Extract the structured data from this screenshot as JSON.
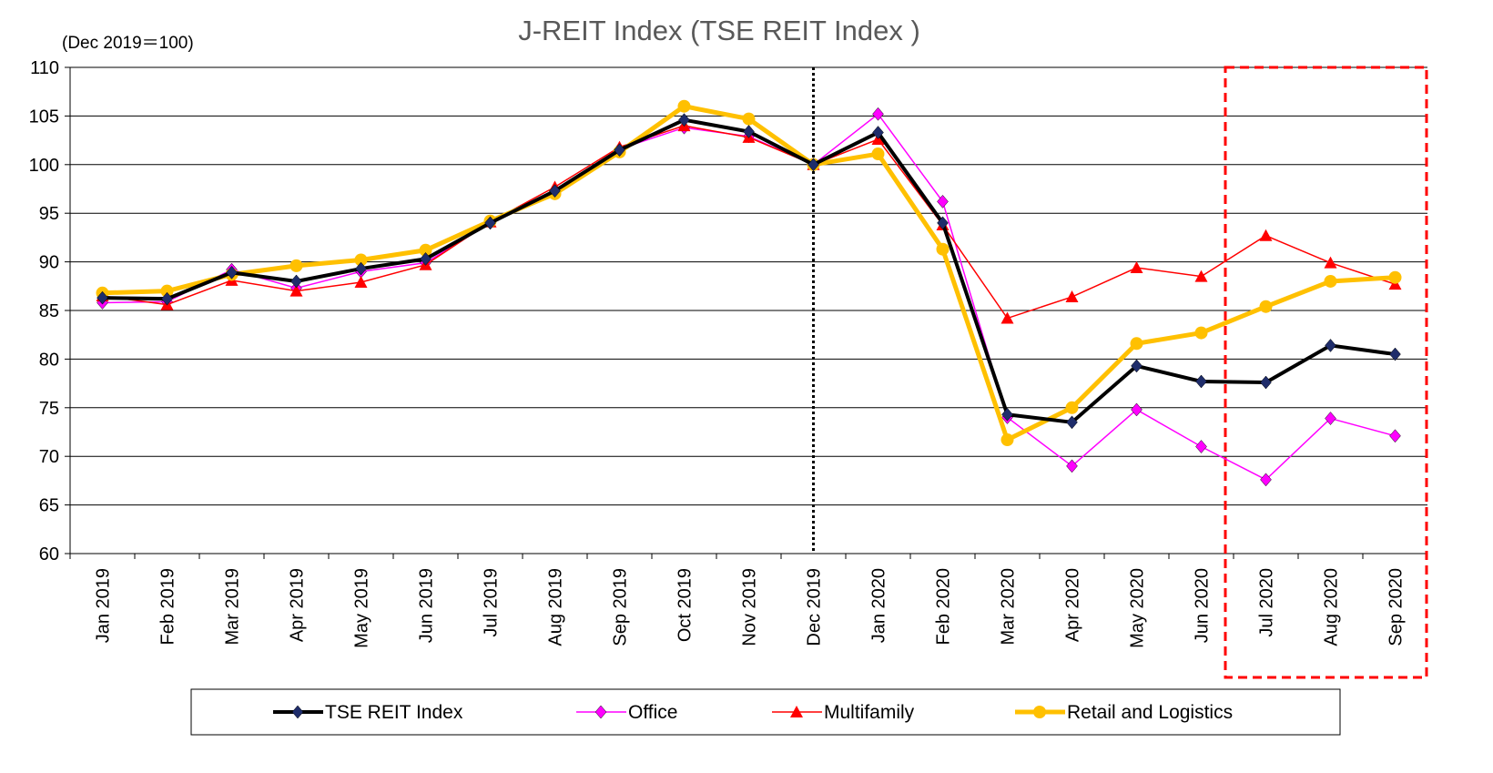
{
  "chart_data": {
    "type": "line",
    "title": "J-REIT Index (TSE REIT Index )",
    "y_label": "(Dec 2019＝100)",
    "categories": [
      "Jan 2019",
      "Feb 2019",
      "Mar 2019",
      "Apr 2019",
      "May 2019",
      "Jun 2019",
      "Jul 2019",
      "Aug 2019",
      "Sep 2019",
      "Oct 2019",
      "Nov 2019",
      "Dec 2019",
      "Jan 2020",
      "Feb 2020",
      "Mar 2020",
      "Apr 2020",
      "May 2020",
      "Jun 2020",
      "Jul 2020",
      "Aug 2020",
      "Sep 2020"
    ],
    "series": [
      {
        "name": "TSE REIT Index",
        "color": "#000000",
        "marker": "diamond",
        "marker_color": "#1f2d6b",
        "values": [
          86.3,
          86.2,
          88.9,
          88.0,
          89.3,
          90.3,
          94.0,
          97.3,
          101.5,
          104.6,
          103.4,
          100,
          103.3,
          94.0,
          74.3,
          73.5,
          79.3,
          77.7,
          77.6,
          81.4,
          80.5
        ]
      },
      {
        "name": "Office",
        "color": "#ff00ff",
        "marker": "diamond",
        "marker_color": "#ff00ff",
        "values": [
          85.8,
          85.9,
          89.2,
          87.3,
          89.0,
          89.9,
          94.0,
          97.2,
          101.6,
          103.8,
          102.9,
          100,
          105.2,
          96.2,
          74.0,
          69.0,
          74.8,
          71.0,
          67.6,
          73.9,
          72.1
        ]
      },
      {
        "name": "Multifamily",
        "color": "#ff0000",
        "marker": "triangle",
        "marker_color": "#ff0000",
        "values": [
          86.5,
          85.6,
          88.1,
          87.0,
          87.9,
          89.7,
          94.1,
          97.7,
          101.8,
          104.0,
          102.8,
          100,
          102.6,
          93.8,
          84.2,
          86.4,
          89.4,
          88.5,
          92.7,
          89.9,
          87.7
        ]
      },
      {
        "name": "Retail and Logistics",
        "color": "#ffc000",
        "marker": "circle",
        "marker_color": "#ffc000",
        "values": [
          86.8,
          87.0,
          88.7,
          89.6,
          90.2,
          91.2,
          94.2,
          97.0,
          101.3,
          106.0,
          104.7,
          100,
          101.1,
          91.3,
          71.7,
          75.0,
          81.6,
          82.7,
          85.4,
          88.0,
          88.4
        ]
      }
    ],
    "ylim": [
      60,
      110
    ],
    "yticks": [
      60,
      65,
      70,
      75,
      80,
      85,
      90,
      95,
      100,
      105,
      110
    ],
    "grid": true,
    "legend": "bottom"
  }
}
